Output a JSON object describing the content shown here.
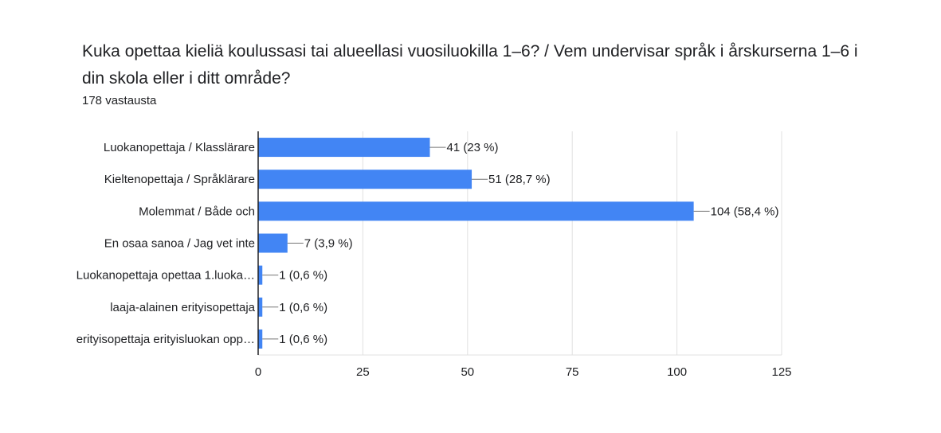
{
  "header": {
    "title": "Kuka opettaa kieliä koulussasi tai alueellasi vuosiluokilla 1–6? / Vem undervisar språk i årskurserna 1–6 i din skola eller i ditt område?",
    "responses": "178 vastausta"
  },
  "colors": {
    "bar": "#4285f4",
    "grid": "#e0e0e0",
    "axis": "#202124"
  },
  "chart_data": {
    "type": "bar",
    "orientation": "horizontal",
    "categories": [
      "Luokanopettaja / Klasslärare",
      "Kieltenopettaja / Språklärare",
      "Molemmat / Både och",
      "En osaa sanoa / Jag vet inte",
      "Luokanopettaja opettaa 1.luoka…",
      "laaja-alainen erityisopettaja",
      "erityisopettaja erityisluokan opp…"
    ],
    "values": [
      41,
      51,
      104,
      7,
      1,
      1,
      1
    ],
    "data_labels": [
      "41 (23 %)",
      "51 (28,7 %)",
      "104 (58,4 %)",
      "7 (3,9 %)",
      "1 (0,6 %)",
      "1 (0,6 %)",
      "1 (0,6 %)"
    ],
    "xlim": [
      0,
      125
    ],
    "xticks": [
      "0",
      "25",
      "50",
      "75",
      "100",
      "125"
    ],
    "grid": true,
    "legend": "none"
  }
}
